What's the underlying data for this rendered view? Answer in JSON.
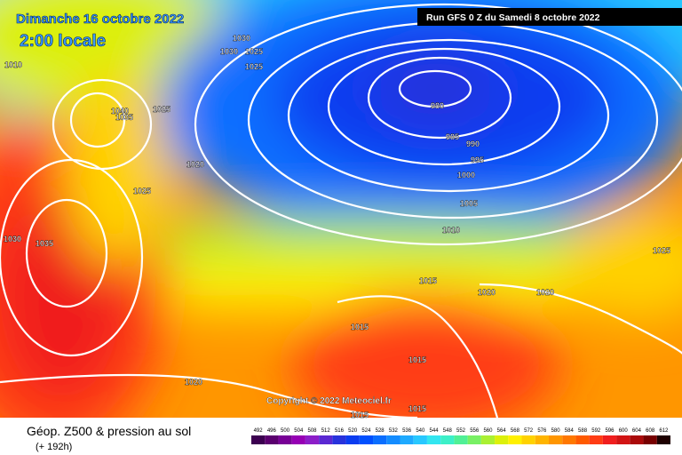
{
  "header": {
    "date": "Dimanche 16 octobre 2022",
    "time": "2:00 locale",
    "run": "Run GFS 0 Z du Samedi 8 octobre 2022"
  },
  "copyright": "Copyright © 2022 Meteociel.fr",
  "isobar_labels": [
    1030,
    1010,
    1030,
    1025,
    1025,
    1040,
    1035,
    1025,
    1020,
    1025,
    1030,
    1035,
    980,
    985,
    990,
    995,
    1000,
    1005,
    1010,
    1015,
    1020,
    1020,
    1025,
    1015,
    1015,
    1020,
    1015,
    1015
  ],
  "legend": {
    "title": "Géop. Z500 & pression au sol",
    "lead": "(+ 192h)",
    "levels": [
      492,
      496,
      500,
      504,
      508,
      512,
      516,
      520,
      524,
      528,
      532,
      536,
      540,
      544,
      548,
      552,
      556,
      560,
      564,
      568,
      572,
      576,
      580,
      584,
      588,
      592,
      596,
      600,
      604,
      608,
      612
    ],
    "colors": [
      "#3c0050",
      "#5a006e",
      "#780096",
      "#9600b4",
      "#8c1ec8",
      "#5a28d2",
      "#2832dc",
      "#0a3cf0",
      "#0050ff",
      "#0a6eff",
      "#148cff",
      "#1eaaff",
      "#28c8ff",
      "#32e6f0",
      "#3cf0c8",
      "#50f096",
      "#78f064",
      "#aaf032",
      "#dcf00a",
      "#fff000",
      "#ffd200",
      "#ffb400",
      "#ff9600",
      "#ff7800",
      "#ff5a00",
      "#ff3c14",
      "#f01e1e",
      "#d21414",
      "#aa0a0a",
      "#780000",
      "#1e0000"
    ]
  }
}
